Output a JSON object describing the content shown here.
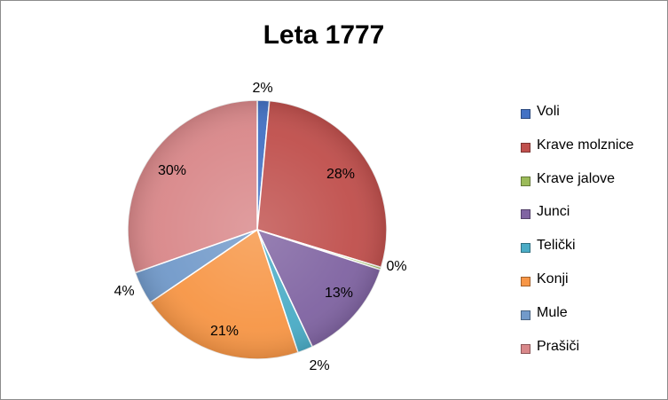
{
  "chart_data": {
    "type": "pie",
    "title": "Leta 1777",
    "start_angle_deg": 0,
    "direction": "clockwise",
    "legend_position": "right",
    "slices": [
      {
        "name": "Voli",
        "value": 1.5,
        "label": "2%",
        "color": "#4472c4"
      },
      {
        "name": "Krave molznice",
        "value": 28.2,
        "label": "28%",
        "color": "#c0504d"
      },
      {
        "name": "Krave jalove",
        "value": 0.3,
        "label": "0%",
        "color": "#9bbb59"
      },
      {
        "name": "Junci",
        "value": 13.0,
        "label": "13%",
        "color": "#8064a2"
      },
      {
        "name": "Telički",
        "value": 1.9,
        "label": "2%",
        "color": "#4bacc6"
      },
      {
        "name": "Konji",
        "value": 20.6,
        "label": "21%",
        "color": "#f79646"
      },
      {
        "name": "Mule",
        "value": 4.1,
        "label": "4%",
        "color": "#729aca"
      },
      {
        "name": "Prašiči",
        "value": 30.4,
        "label": "30%",
        "color": "#d9888a"
      }
    ]
  }
}
